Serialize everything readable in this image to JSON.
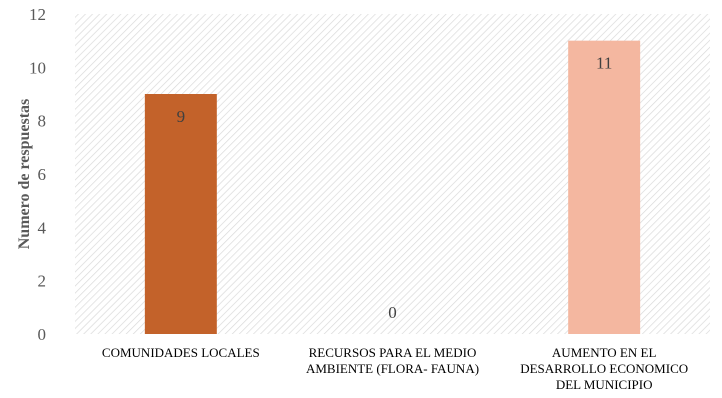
{
  "chart_data": {
    "type": "bar",
    "categories": [
      [
        "COMUNIDADES LOCALES"
      ],
      [
        "RECURSOS PARA EL MEDIO",
        "AMBIENTE (FLORA- FAUNA)"
      ],
      [
        "AUMENTO EN EL",
        "DESARROLLO ECONOMICO",
        "DEL MUNICIPIO"
      ]
    ],
    "values": [
      9,
      0,
      11
    ],
    "data_labels": [
      "9",
      "0",
      "11"
    ],
    "colors": [
      "#c3622a",
      "#c3622a",
      "#f4b7a0"
    ],
    "title": "",
    "xlabel": "",
    "ylabel": "Numero de respuestas",
    "ylim": [
      0,
      12
    ],
    "yticks": [
      0,
      2,
      4,
      6,
      8,
      10,
      12
    ],
    "grid": false,
    "background": "hatched-diagonal",
    "legend": "none"
  }
}
